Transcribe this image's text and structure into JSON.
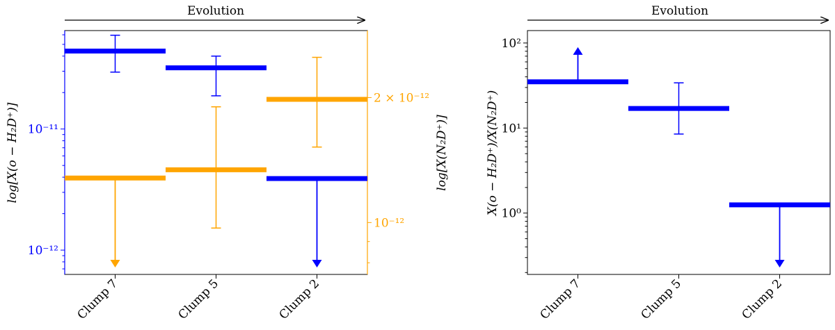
{
  "chart_data": [
    {
      "type": "bar",
      "title": "",
      "annotation": "Evolution",
      "categories": [
        "Clump 7",
        "Clump 5",
        "Clump 2"
      ],
      "left_axis": {
        "label": "log[X(o − H₂D⁺)]",
        "scale": "log",
        "range": [
          6.3e-13,
          6.5e-11
        ],
        "color": "#0000ff",
        "ticks": [
          {
            "value": 1e-12,
            "label": "10⁻¹²"
          },
          {
            "value": 1e-11,
            "label": "10⁻¹¹"
          }
        ]
      },
      "right_axis": {
        "label": "log[X(N₂D⁺)]",
        "scale": "log",
        "range": [
          7.5e-13,
          2.9e-12
        ],
        "color": "#ffa500",
        "ticks": [
          {
            "value": 1e-12,
            "label": "10⁻¹²"
          },
          {
            "value": 2e-12,
            "label": "2 × 10⁻¹²"
          }
        ]
      },
      "series": [
        {
          "axis": "left",
          "color": "#0000ff",
          "points": [
            {
              "category": "Clump 7",
              "value": 4.4e-11,
              "err_low": 2.95e-11,
              "err_high": 5.95e-11,
              "upper_limit": false
            },
            {
              "category": "Clump 5",
              "value": 3.2e-11,
              "err_low": 1.88e-11,
              "err_high": 4e-11,
              "upper_limit": false
            },
            {
              "category": "Clump 2",
              "value": 3.9e-12,
              "upper_limit": true
            }
          ]
        },
        {
          "axis": "right",
          "color": "#ffa500",
          "points": [
            {
              "category": "Clump 7",
              "value": 1.28e-12,
              "upper_limit": true
            },
            {
              "category": "Clump 5",
              "value": 1.34e-12,
              "err_low": 9.7e-13,
              "err_high": 1.9e-12,
              "upper_limit": false
            },
            {
              "category": "Clump 2",
              "value": 1.98e-12,
              "err_low": 1.52e-12,
              "err_high": 2.5e-12,
              "upper_limit": false
            }
          ]
        }
      ]
    },
    {
      "type": "bar",
      "title": "",
      "annotation": "Evolution",
      "categories": [
        "Clump 7",
        "Clump 5",
        "Clump 2"
      ],
      "left_axis": {
        "label": "X(o − H₂D⁺)/X(N₂D⁺)",
        "scale": "log",
        "range": [
          0.19,
          140
        ],
        "color": "#000000",
        "ticks": [
          {
            "value": 1,
            "label": "10⁰"
          },
          {
            "value": 10,
            "label": "10¹"
          },
          {
            "value": 100,
            "label": "10²"
          }
        ]
      },
      "series": [
        {
          "color": "#0000ff",
          "points": [
            {
              "category": "Clump 7",
              "value": 35,
              "lower_limit": true
            },
            {
              "category": "Clump 5",
              "value": 17,
              "err_low": 8.5,
              "err_high": 34,
              "upper_limit": false
            },
            {
              "category": "Clump 2",
              "value": 1.25,
              "upper_limit": true
            }
          ]
        }
      ]
    }
  ]
}
